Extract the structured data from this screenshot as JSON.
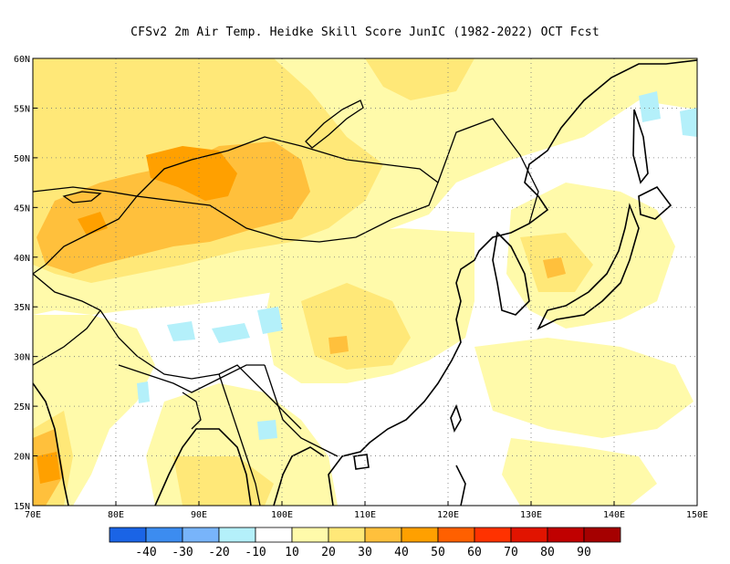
{
  "title": "CFSv2  2m Air Temp. Heidke Skill Score JunIC (1982-2022) OCT Fcst",
  "map": {
    "lon_range": [
      70,
      150
    ],
    "lat_range": [
      15,
      60
    ],
    "x_ticks": [
      {
        "lon": 70,
        "label": "70E"
      },
      {
        "lon": 80,
        "label": "80E"
      },
      {
        "lon": 90,
        "label": "90E"
      },
      {
        "lon": 100,
        "label": "100E"
      },
      {
        "lon": 110,
        "label": "110E"
      },
      {
        "lon": 120,
        "label": "120E"
      },
      {
        "lon": 130,
        "label": "130E"
      },
      {
        "lon": 140,
        "label": "140E"
      },
      {
        "lon": 150,
        "label": "150E"
      }
    ],
    "y_ticks": [
      {
        "lat": 60,
        "label": "60N"
      },
      {
        "lat": 55,
        "label": "55N"
      },
      {
        "lat": 50,
        "label": "50N"
      },
      {
        "lat": 45,
        "label": "45N"
      },
      {
        "lat": 40,
        "label": "40N"
      },
      {
        "lat": 35,
        "label": "35N"
      },
      {
        "lat": 30,
        "label": "30N"
      },
      {
        "lat": 25,
        "label": "25N"
      },
      {
        "lat": 20,
        "label": "20N"
      },
      {
        "lat": 15,
        "label": "15N"
      }
    ],
    "grid": "dotted"
  },
  "colorbar": {
    "bins": [
      {
        "color": "#1a64e6"
      },
      {
        "color": "#3c8cf0"
      },
      {
        "color": "#78b4fa"
      },
      {
        "color": "#b4f0fa"
      },
      {
        "color": "#ffffff"
      },
      {
        "color": "#fffaaa"
      },
      {
        "color": "#ffe878"
      },
      {
        "color": "#ffc03c"
      },
      {
        "color": "#ffa000"
      },
      {
        "color": "#ff6000"
      },
      {
        "color": "#ff3200"
      },
      {
        "color": "#e11400"
      },
      {
        "color": "#c00000"
      },
      {
        "color": "#a50000"
      }
    ],
    "labels": [
      "-40",
      "-30",
      "-20",
      "-10",
      "10",
      "20",
      "30",
      "40",
      "50",
      "60",
      "70",
      "80",
      "90"
    ]
  }
}
